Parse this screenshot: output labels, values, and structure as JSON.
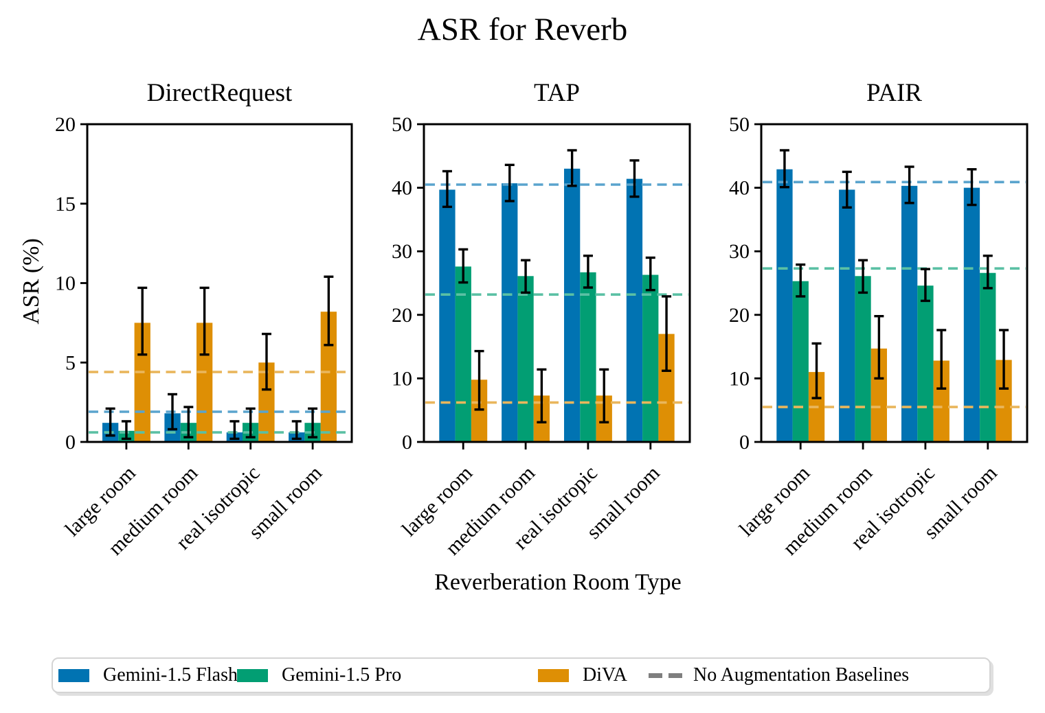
{
  "title": "ASR for Reverb",
  "xlabel": "Reverberation Room Type",
  "ylabel": "ASR (%)",
  "colors": {
    "flash": "#0173b2",
    "pro": "#029e73",
    "diva": "#de8f05",
    "baseline_flash": "#5aa4cd",
    "baseline_pro": "#5bc0a4",
    "baseline_diva": "#e9b65c",
    "baseline_legend": "#7f7f7f",
    "error_bar": "#000000",
    "axis": "#000000"
  },
  "legend": {
    "items": [
      {
        "key": "flash",
        "label": "Gemini-1.5 Flash"
      },
      {
        "key": "pro",
        "label": "Gemini-1.5 Pro"
      },
      {
        "key": "diva",
        "label": "DiVA"
      }
    ],
    "baseline_item": {
      "label": "No Augmentation Baselines"
    }
  },
  "chart_data": [
    {
      "type": "bar",
      "title": "DirectRequest",
      "categories": [
        "large room",
        "medium room",
        "real isotropic",
        "small room"
      ],
      "ylim": [
        0,
        20
      ],
      "yticks": [
        0,
        5,
        10,
        15,
        20
      ],
      "grid": false,
      "series": [
        {
          "key": "flash",
          "name": "Gemini-1.5 Flash",
          "values": [
            1.2,
            1.8,
            0.6,
            0.6
          ],
          "err_low": [
            0.4,
            0.8,
            0.2,
            0.2
          ],
          "err_high": [
            2.1,
            3.0,
            1.3,
            1.3
          ],
          "baseline": 1.9
        },
        {
          "key": "pro",
          "name": "Gemini-1.5 Pro",
          "values": [
            0.7,
            1.2,
            1.2,
            1.2
          ],
          "err_low": [
            0.2,
            0.3,
            0.3,
            0.3
          ],
          "err_high": [
            1.3,
            2.2,
            2.1,
            2.1
          ],
          "baseline": 0.6
        },
        {
          "key": "diva",
          "name": "DiVA",
          "values": [
            7.5,
            7.5,
            5.0,
            8.2
          ],
          "err_low": [
            5.5,
            5.5,
            3.3,
            6.1
          ],
          "err_high": [
            9.7,
            9.7,
            6.8,
            10.4
          ],
          "baseline": 4.4
        }
      ]
    },
    {
      "type": "bar",
      "title": "TAP",
      "categories": [
        "large room",
        "medium room",
        "real isotropic",
        "small room"
      ],
      "ylim": [
        0,
        50
      ],
      "yticks": [
        0,
        10,
        20,
        30,
        40,
        50
      ],
      "grid": false,
      "series": [
        {
          "key": "flash",
          "name": "Gemini-1.5 Flash",
          "values": [
            39.7,
            40.7,
            43.0,
            41.4
          ],
          "err_low": [
            37.0,
            37.9,
            40.3,
            38.6
          ],
          "err_high": [
            42.6,
            43.6,
            45.9,
            44.3
          ],
          "baseline": 40.5
        },
        {
          "key": "pro",
          "name": "Gemini-1.5 Pro",
          "values": [
            27.6,
            26.1,
            26.7,
            26.3
          ],
          "err_low": [
            25.1,
            23.5,
            24.3,
            23.9
          ],
          "err_high": [
            30.3,
            28.6,
            29.3,
            29.0
          ],
          "baseline": 23.2
        },
        {
          "key": "diva",
          "name": "DiVA",
          "values": [
            9.8,
            7.3,
            7.3,
            17.0
          ],
          "err_low": [
            5.1,
            3.1,
            3.1,
            11.2
          ],
          "err_high": [
            14.3,
            11.4,
            11.4,
            22.9
          ],
          "baseline": 6.2
        }
      ]
    },
    {
      "type": "bar",
      "title": "PAIR",
      "categories": [
        "large room",
        "medium room",
        "real isotropic",
        "small room"
      ],
      "ylim": [
        0,
        50
      ],
      "yticks": [
        0,
        10,
        20,
        30,
        40,
        50
      ],
      "grid": false,
      "series": [
        {
          "key": "flash",
          "name": "Gemini-1.5 Flash",
          "values": [
            42.9,
            39.7,
            40.3,
            40.0
          ],
          "err_low": [
            40.1,
            36.9,
            37.6,
            37.3
          ],
          "err_high": [
            45.9,
            42.5,
            43.3,
            42.9
          ],
          "baseline": 40.9
        },
        {
          "key": "pro",
          "name": "Gemini-1.5 Pro",
          "values": [
            25.3,
            26.1,
            24.6,
            26.6
          ],
          "err_low": [
            22.9,
            23.5,
            22.2,
            24.2
          ],
          "err_high": [
            27.9,
            28.6,
            27.2,
            29.3
          ],
          "baseline": 27.3
        },
        {
          "key": "diva",
          "name": "DiVA",
          "values": [
            11.0,
            14.7,
            12.8,
            12.9
          ],
          "err_low": [
            6.9,
            10.0,
            8.4,
            8.4
          ],
          "err_high": [
            15.5,
            19.8,
            17.6,
            17.6
          ],
          "baseline": 5.5
        }
      ]
    }
  ]
}
